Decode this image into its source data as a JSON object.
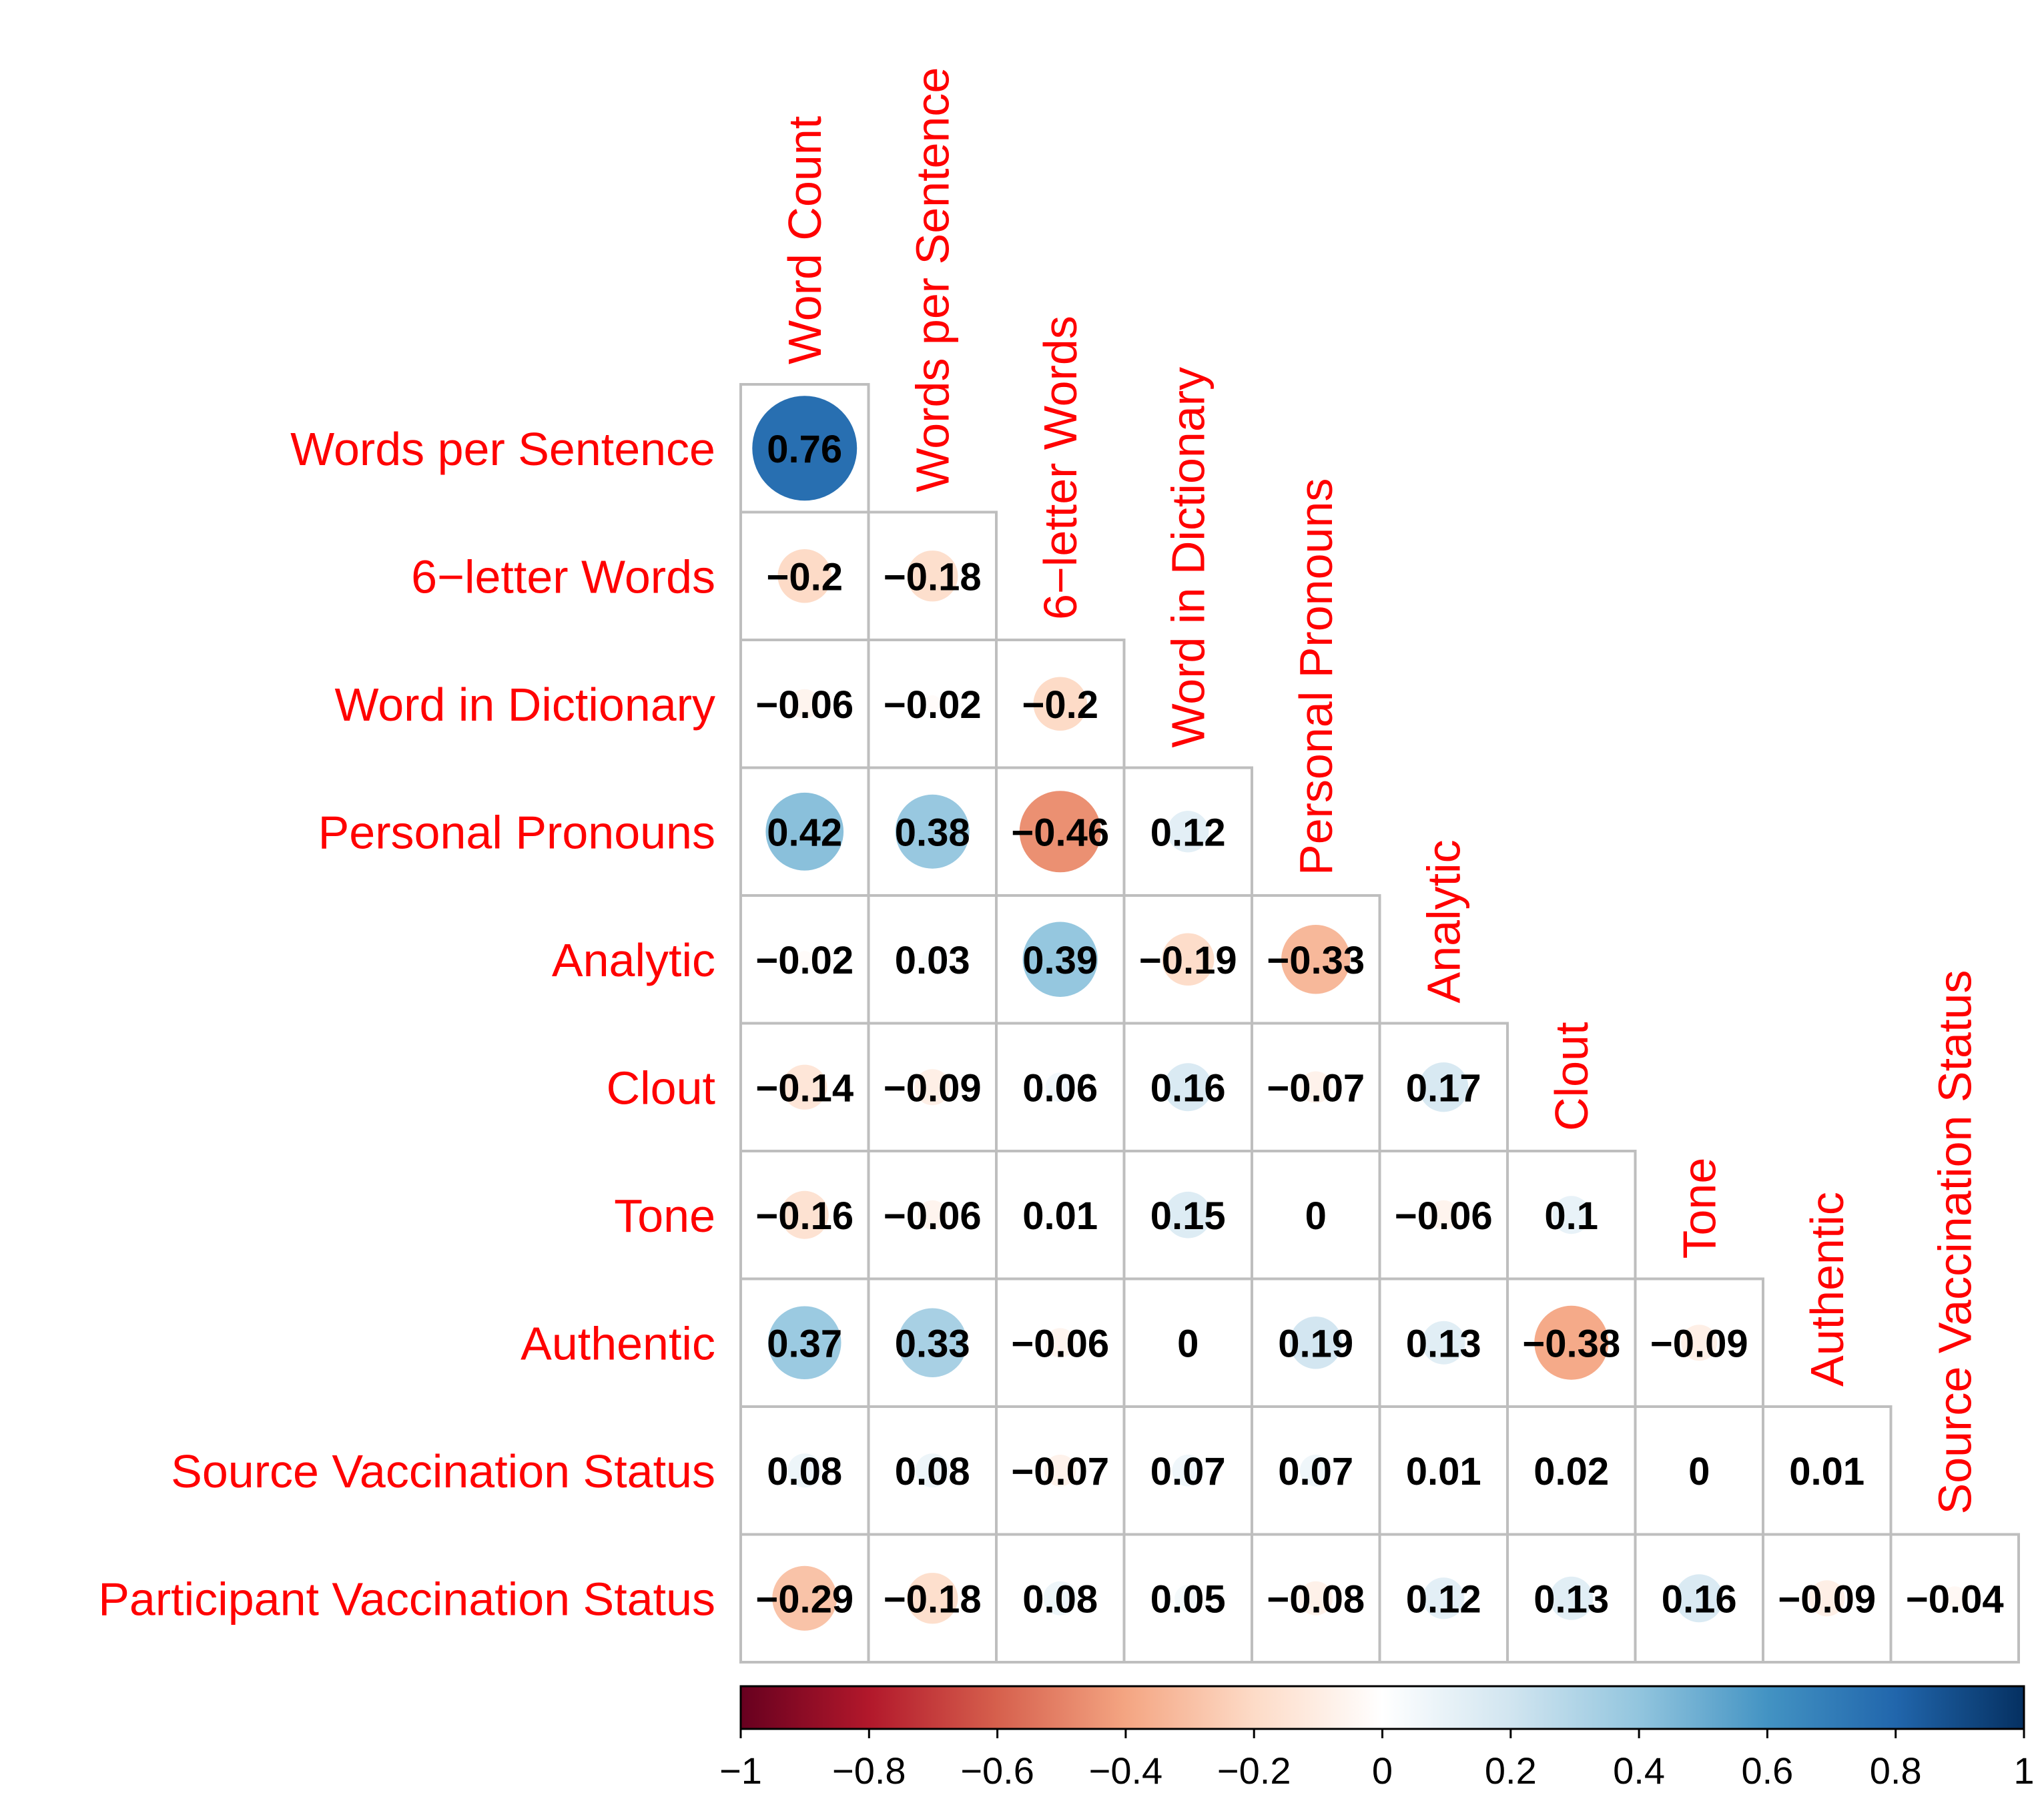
{
  "chart_data": {
    "type": "heatmap",
    "subtype": "correlation-matrix-lower-triangle",
    "variables": [
      "Word Count",
      "Words per Sentence",
      "6−letter Words",
      "Word in Dictionary",
      "Personal Pronouns",
      "Analytic",
      "Clout",
      "Tone",
      "Authentic",
      "Source Vaccination Status",
      "Participant Vaccination Status"
    ],
    "row_labels": [
      "Words per Sentence",
      "6−letter Words",
      "Word in Dictionary",
      "Personal Pronouns",
      "Analytic",
      "Clout",
      "Tone",
      "Authentic",
      "Source Vaccination Status",
      "Participant Vaccination Status"
    ],
    "column_labels": [
      "Word Count",
      "Words per Sentence",
      "6−letter Words",
      "Word in Dictionary",
      "Personal Pronouns",
      "Analytic",
      "Clout",
      "Tone",
      "Authentic",
      "Source Vaccination Status"
    ],
    "values": [
      [
        0.76
      ],
      [
        -0.2,
        -0.18
      ],
      [
        -0.06,
        -0.02,
        -0.2
      ],
      [
        0.42,
        0.38,
        -0.46,
        0.12
      ],
      [
        -0.02,
        0.03,
        0.39,
        -0.19,
        -0.33
      ],
      [
        -0.14,
        -0.09,
        0.06,
        0.16,
        -0.07,
        0.17
      ],
      [
        -0.16,
        -0.06,
        0.01,
        0.15,
        0,
        -0.06,
        0.1
      ],
      [
        0.37,
        0.33,
        -0.06,
        0,
        0.19,
        0.13,
        -0.38,
        -0.09
      ],
      [
        0.08,
        0.08,
        -0.07,
        0.07,
        0.07,
        0.01,
        0.02,
        0,
        0.01
      ],
      [
        -0.29,
        -0.18,
        0.08,
        0.05,
        -0.08,
        0.12,
        0.13,
        0.16,
        -0.09,
        -0.04
      ]
    ],
    "value_labels": [
      [
        "0.76"
      ],
      [
        "−0.2",
        "−0.18"
      ],
      [
        "−0.06",
        "−0.02",
        "−0.2"
      ],
      [
        "0.42",
        "0.38",
        "−0.46",
        "0.12"
      ],
      [
        "−0.02",
        "0.03",
        "0.39",
        "−0.19",
        "−0.33"
      ],
      [
        "−0.14",
        "−0.09",
        "0.06",
        "0.16",
        "−0.07",
        "0.17"
      ],
      [
        "−0.16",
        "−0.06",
        "0.01",
        "0.15",
        "0",
        "−0.06",
        "0.1"
      ],
      [
        "0.37",
        "0.33",
        "−0.06",
        "0",
        "0.19",
        "0.13",
        "−0.38",
        "−0.09"
      ],
      [
        "0.08",
        "0.08",
        "−0.07",
        "0.07",
        "0.07",
        "0.01",
        "0.02",
        "0",
        "0.01"
      ],
      [
        "−0.29",
        "−0.18",
        "0.08",
        "0.05",
        "−0.08",
        "0.12",
        "0.13",
        "0.16",
        "−0.09",
        "−0.04"
      ]
    ],
    "colorbar": {
      "range": [
        -1,
        1
      ],
      "ticks": [
        -1,
        -0.8,
        -0.6,
        -0.4,
        -0.2,
        0,
        0.2,
        0.4,
        0.6,
        0.8,
        1
      ],
      "tick_labels": [
        "−1",
        "−0.8",
        "−0.6",
        "−0.4",
        "−0.2",
        "0",
        "0.2",
        "0.4",
        "0.6",
        "0.8",
        "1"
      ],
      "placement": "bottom",
      "stops": [
        "#67001F",
        "#B2182B",
        "#D6604D",
        "#F4A582",
        "#FDDBC7",
        "#FFFFFF",
        "#D1E5F0",
        "#92C5DE",
        "#4393C3",
        "#2166AC",
        "#053061"
      ]
    },
    "label_color": "#FF0000",
    "grid_color": "#BEBEBE",
    "grid": true
  }
}
